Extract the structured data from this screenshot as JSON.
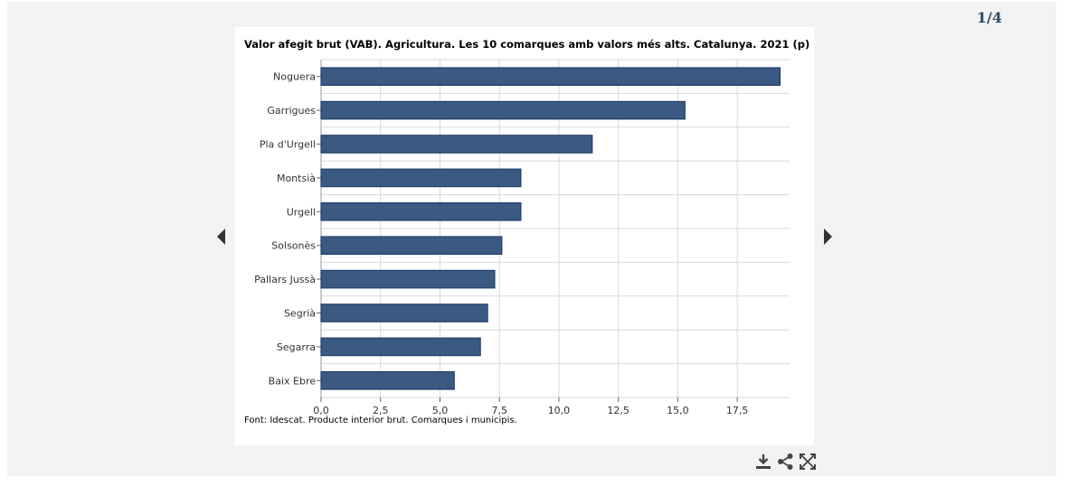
{
  "pager": {
    "text": "1/4"
  },
  "chart_data": {
    "type": "bar",
    "orientation": "horizontal",
    "title": "Valor afegit brut (VAB). Agricultura. Les 10 comarques amb valors més alts. Catalunya. 2021 (p)",
    "categories": [
      "Noguera",
      "Garrigues",
      "Pla d'Urgell",
      "Montsià",
      "Urgell",
      "Solsonès",
      "Pallars Jussà",
      "Segrià",
      "Segarra",
      "Baix Ebre"
    ],
    "values": [
      19.3,
      15.3,
      11.4,
      8.4,
      8.4,
      7.6,
      7.3,
      7.0,
      6.7,
      5.6
    ],
    "xticks": [
      "0,0",
      "2,5",
      "5,0",
      "7,5",
      "10,0",
      "12,5",
      "15,0",
      "17,5"
    ],
    "xlim": [
      0,
      19.7
    ],
    "grid": true,
    "bar_color": "#3b5a82",
    "bar_stroke": "#22406a",
    "xlabel": "",
    "ylabel": ""
  },
  "source": "Font: Idescat. Producte interior brut. Comarques i municipis.",
  "toolbar": {
    "download": "download-icon",
    "share": "share-icon",
    "fullscreen": "fullscreen-icon"
  }
}
